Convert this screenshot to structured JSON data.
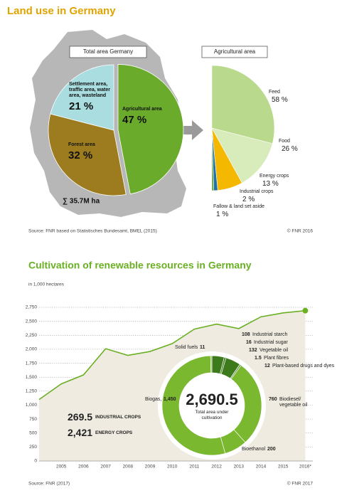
{
  "chart_data": [
    {
      "type": "pie",
      "title": "Land use in Germany",
      "subtitle": "Total area Germany",
      "categories": [
        "Agricultural area",
        "Forest area",
        "Settlement area, traffic area, water area, wasteland"
      ],
      "values": [
        47,
        32,
        21
      ],
      "value_labels": [
        "47 %",
        "32 %",
        "21 %"
      ],
      "colors": [
        "#6aab2b",
        "#9c7c1e",
        "#a9dde0"
      ],
      "annotation": "∑ 35.7M ha",
      "source": "Source: FNR based on Statistisches Bundesamt, BMEL (2015)",
      "copyright": "© FNR 2016"
    },
    {
      "type": "halfpie",
      "subtitle": "Agricultural area",
      "categories": [
        "Feed",
        "Food",
        "Energy crops",
        "Industrial crops",
        "Fallow & land set aside"
      ],
      "values": [
        58,
        26,
        13,
        2,
        1
      ],
      "value_labels": [
        "58 %",
        "26 %",
        "13 %",
        "2 %",
        "1 %"
      ],
      "colors": [
        "#b9da8c",
        "#d8ebba",
        "#f5b800",
        "#1f6fa8",
        "#5a9e2f"
      ]
    },
    {
      "type": "area",
      "title": "Cultivation of renewable resources in Germany",
      "ylabel": "in 1,000 hectares",
      "x": [
        null,
        "2005",
        "2006",
        "2007",
        "2008",
        "2009",
        "2010",
        "2011",
        "2012",
        "2013",
        "2014",
        "2015",
        "2016*"
      ],
      "series": [
        {
          "color": "#6ab023",
          "values": [
            1100,
            1380,
            1540,
            2010,
            1890,
            1960,
            2100,
            2360,
            2450,
            2370,
            2580,
            2650,
            2690.5
          ]
        }
      ],
      "ylim": [
        0,
        2750
      ],
      "yticks": [
        0,
        250,
        500,
        750,
        {
          "value": 1000,
          "label": "1,000"
        },
        {
          "value": 1250,
          "label": "1,250"
        },
        {
          "value": 1500,
          "label": "1,500"
        },
        {
          "value": 1750,
          "label": "1,750"
        },
        {
          "value": 2000,
          "label": "2,000"
        },
        {
          "value": 2250,
          "label": "2,250"
        },
        {
          "value": 2500,
          "label": "2,500"
        },
        {
          "value": 2750,
          "label": "2,750"
        }
      ],
      "grid": true,
      "source": "Source: FNR (2017)",
      "copyright": "© FNR 2017"
    },
    {
      "type": "donut",
      "categories": [
        "Industrial starch",
        "Industrial sugar",
        "Vegetable oil",
        "Plant fibres",
        "Plant-based drugs and dyes",
        "Biodiesel/ vegetable oil",
        "Bioethanol",
        "Biogas,",
        "Solid fuels"
      ],
      "values": [
        108,
        16,
        132,
        1.5,
        12,
        760,
        200,
        1450,
        11
      ],
      "value_labels": [
        "108",
        "16",
        "132",
        "1.5",
        "12",
        "760",
        "200",
        "1,450",
        "11"
      ],
      "colors": [
        "#3d7a1c",
        "#3d7a1c",
        "#3d7a1c",
        "#3d7a1c",
        "#3d7a1c",
        "#79b82f",
        "#79b82f",
        "#79b82f",
        "#79b82f"
      ],
      "center_label": "2,690.5",
      "center_caption": "Total area under cultivation",
      "legend": [
        {
          "value_label": "269.5",
          "name": "INDUSTRIAL CROPS"
        },
        {
          "value_label": "2,421",
          "name": "ENERGY CROPS"
        }
      ]
    }
  ]
}
